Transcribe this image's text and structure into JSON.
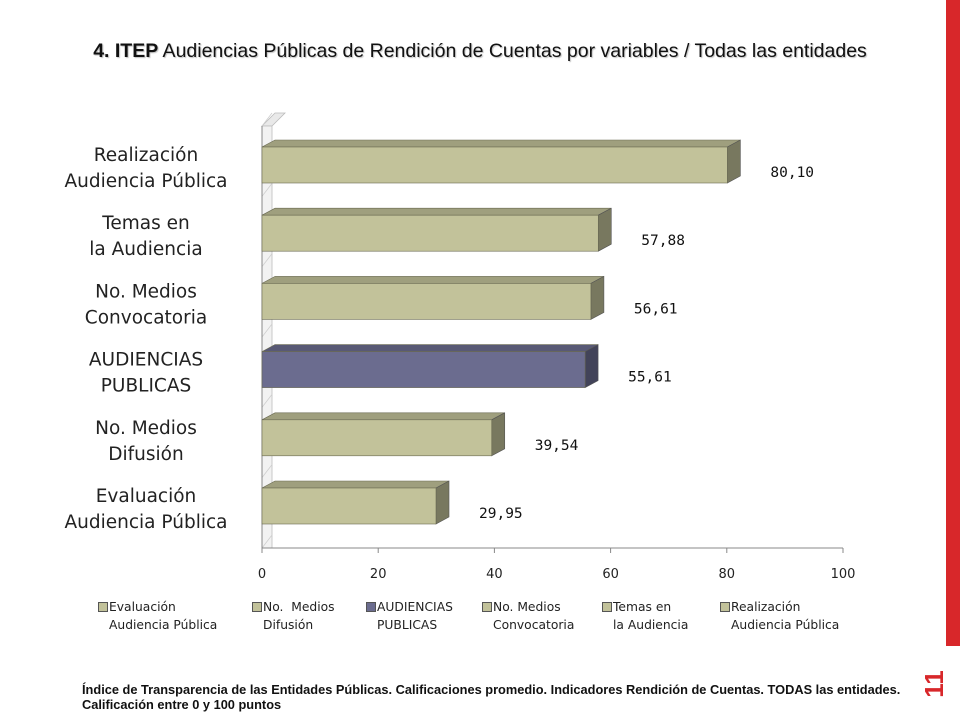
{
  "slide": {
    "title_bold": "4. ITEP",
    "title_rest": " Audiencias Públicas de Rendición de Cuentas por variables / Todas las entidades",
    "footer": "Índice de Transparencia de las Entidades Públicas. Calificaciones promedio. Indicadores Rendición de Cuentas. TODAS las entidades. Calificación entre 0 y 100 puntos",
    "page_number": "11",
    "accent_color": "#d8272a"
  },
  "chart_data": {
    "type": "bar",
    "orientation": "horizontal",
    "title": "",
    "xlim": [
      0,
      100
    ],
    "x_ticks": [
      "0",
      "20",
      "40",
      "60",
      "80",
      "100"
    ],
    "categories": [
      {
        "label": "Realización\nAudiencia Pública",
        "value": 80.1,
        "value_label": "80,10",
        "color": "#c2c29a",
        "highlight": false
      },
      {
        "label": "Temas en\nla Audiencia",
        "value": 57.88,
        "value_label": "57,88",
        "color": "#c2c29a",
        "highlight": false
      },
      {
        "label": "No. Medios\nConvocatoria",
        "value": 56.61,
        "value_label": "56,61",
        "color": "#c2c29a",
        "highlight": false
      },
      {
        "label": "AUDIENCIAS\nPUBLICAS",
        "value": 55.61,
        "value_label": "55,61",
        "color": "#6b6c8f",
        "highlight": true
      },
      {
        "label": "No.  Medios\nDifusión",
        "value": 39.54,
        "value_label": "39,54",
        "color": "#c2c29a",
        "highlight": false
      },
      {
        "label": "Evaluación\nAudiencia Pública",
        "value": 29.95,
        "value_label": "29,95",
        "color": "#c2c29a",
        "highlight": false
      }
    ],
    "legend": {
      "placement": "bottom",
      "entries": [
        {
          "label": "Evaluación\nAudiencia Pública",
          "color": "#c2c29a"
        },
        {
          "label": "No.  Medios\nDifusión",
          "color": "#c2c29a"
        },
        {
          "label": "AUDIENCIAS\nPUBLICAS",
          "color": "#6b6c8f"
        },
        {
          "label": "No. Medios\nConvocatoria",
          "color": "#c2c29a"
        },
        {
          "label": "Temas en\nla Audiencia",
          "color": "#c2c29a"
        },
        {
          "label": "Realización\nAudiencia Pública",
          "color": "#c2c29a"
        }
      ]
    },
    "grid": false
  }
}
